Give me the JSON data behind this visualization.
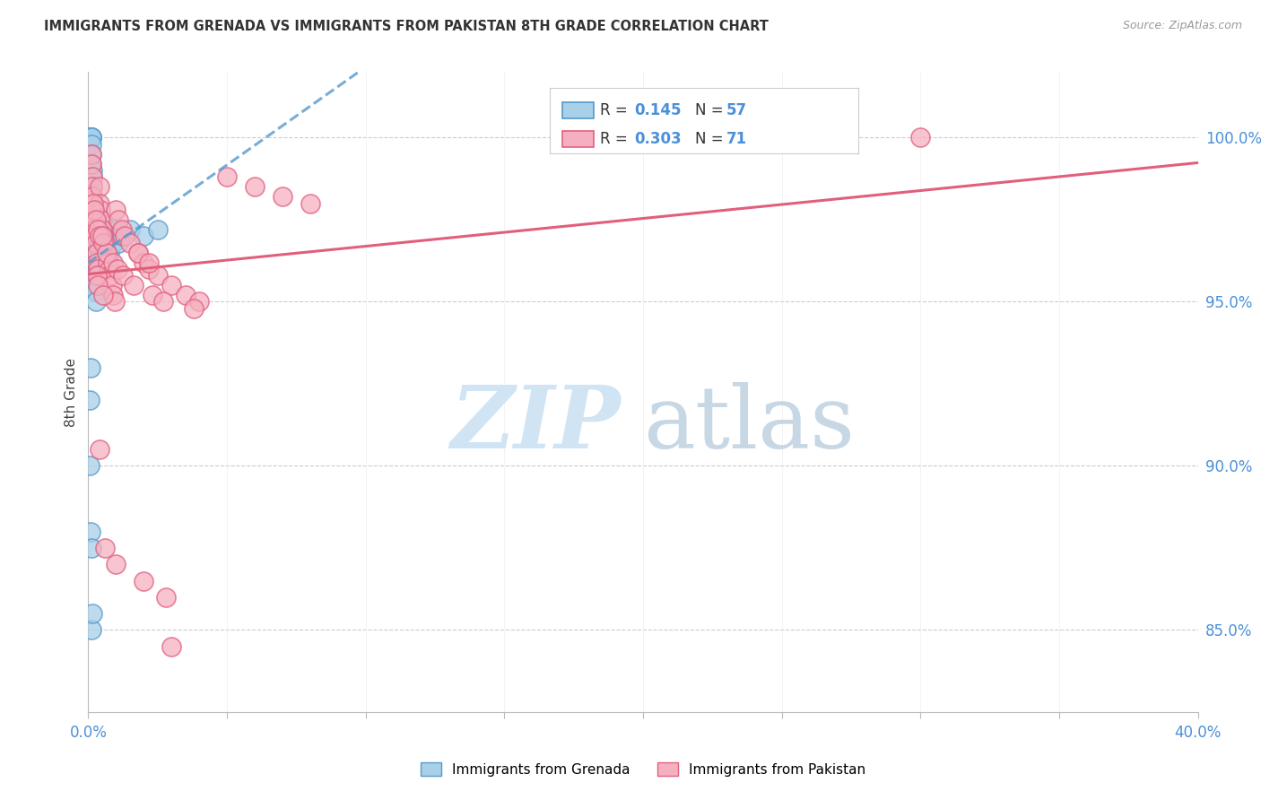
{
  "title": "IMMIGRANTS FROM GRENADA VS IMMIGRANTS FROM PAKISTAN 8TH GRADE CORRELATION CHART",
  "source": "Source: ZipAtlas.com",
  "ylabel": "8th Grade",
  "yticks": [
    85.0,
    90.0,
    95.0,
    100.0
  ],
  "xlim": [
    0.0,
    40.0
  ],
  "ylim": [
    82.5,
    102.0
  ],
  "color_grenada_fill": "#A8D0E8",
  "color_grenada_edge": "#5599CC",
  "color_pakistan_fill": "#F5B0C0",
  "color_pakistan_edge": "#E06080",
  "color_grenada_line": "#5599CC",
  "color_pakistan_line": "#E0607A",
  "color_axis_text": "#4A90D9",
  "legend_label1": "Immigrants from Grenada",
  "legend_label2": "Immigrants from Pakistan",
  "R1": 0.145,
  "N1": 57,
  "R2": 0.303,
  "N2": 71,
  "grenada_x": [
    0.05,
    0.07,
    0.08,
    0.09,
    0.09,
    0.1,
    0.1,
    0.1,
    0.11,
    0.12,
    0.13,
    0.14,
    0.15,
    0.15,
    0.16,
    0.17,
    0.18,
    0.19,
    0.2,
    0.2,
    0.21,
    0.22,
    0.23,
    0.25,
    0.25,
    0.27,
    0.28,
    0.3,
    0.32,
    0.33,
    0.35,
    0.38,
    0.4,
    0.42,
    0.45,
    0.48,
    0.5,
    0.55,
    0.6,
    0.65,
    0.7,
    0.75,
    0.8,
    0.9,
    1.0,
    1.1,
    1.2,
    1.5,
    2.0,
    2.5,
    0.05,
    0.08,
    0.1,
    0.12,
    0.15,
    0.05,
    0.08
  ],
  "grenada_y": [
    100.0,
    100.0,
    100.0,
    100.0,
    100.0,
    100.0,
    100.0,
    100.0,
    99.8,
    99.5,
    99.2,
    99.0,
    98.8,
    98.5,
    98.2,
    97.8,
    97.5,
    97.2,
    97.0,
    96.8,
    96.5,
    96.3,
    96.0,
    95.8,
    95.5,
    95.3,
    95.0,
    96.5,
    97.0,
    96.0,
    95.8,
    97.2,
    96.8,
    96.5,
    96.2,
    96.0,
    97.5,
    96.8,
    96.5,
    97.0,
    97.2,
    96.5,
    97.0,
    96.8,
    97.2,
    96.8,
    97.0,
    97.2,
    97.0,
    97.2,
    90.0,
    88.0,
    87.5,
    85.0,
    85.5,
    92.0,
    93.0
  ],
  "pakistan_x": [
    0.1,
    0.12,
    0.14,
    0.15,
    0.16,
    0.18,
    0.2,
    0.22,
    0.25,
    0.28,
    0.3,
    0.32,
    0.35,
    0.38,
    0.4,
    0.42,
    0.45,
    0.48,
    0.5,
    0.55,
    0.6,
    0.65,
    0.7,
    0.75,
    0.8,
    0.85,
    0.9,
    0.95,
    1.0,
    1.1,
    1.2,
    1.3,
    1.5,
    1.8,
    2.0,
    2.2,
    2.5,
    3.0,
    3.5,
    4.0,
    5.0,
    6.0,
    7.0,
    8.0,
    30.0,
    0.18,
    0.22,
    0.28,
    0.35,
    0.42,
    0.55,
    0.68,
    0.88,
    1.05,
    1.25,
    1.65,
    2.3,
    2.7,
    3.8,
    0.5,
    1.8,
    2.2,
    0.4,
    0.6,
    1.0,
    2.0,
    2.8,
    3.0,
    0.3,
    0.35,
    0.55
  ],
  "pakistan_y": [
    99.5,
    99.2,
    98.8,
    98.5,
    98.2,
    97.8,
    97.5,
    97.2,
    97.0,
    96.8,
    96.5,
    96.2,
    96.0,
    95.8,
    98.5,
    98.0,
    97.8,
    97.5,
    97.2,
    97.0,
    96.8,
    96.5,
    96.2,
    96.0,
    95.8,
    95.5,
    95.2,
    95.0,
    97.8,
    97.5,
    97.2,
    97.0,
    96.8,
    96.5,
    96.2,
    96.0,
    95.8,
    95.5,
    95.2,
    95.0,
    98.8,
    98.5,
    98.2,
    98.0,
    100.0,
    98.0,
    97.8,
    97.5,
    97.2,
    97.0,
    96.8,
    96.5,
    96.2,
    96.0,
    95.8,
    95.5,
    95.2,
    95.0,
    94.8,
    97.0,
    96.5,
    96.2,
    90.5,
    87.5,
    87.0,
    86.5,
    86.0,
    84.5,
    95.8,
    95.5,
    95.2
  ]
}
